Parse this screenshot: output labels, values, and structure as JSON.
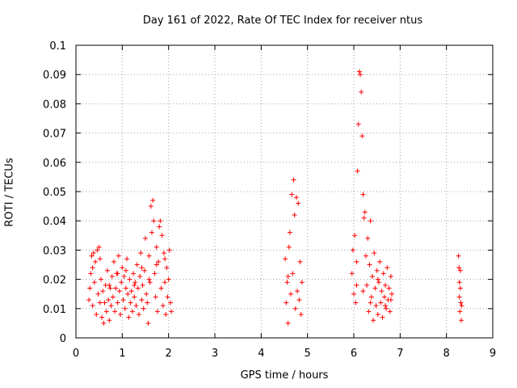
{
  "chart_data": {
    "type": "scatter",
    "title": "Day 161 of 2022, Rate Of TEC Index for receiver ntus",
    "xlabel": "GPS time / hours",
    "ylabel": "ROTI / TECUs",
    "xlim": [
      0,
      9
    ],
    "ylim": [
      0,
      0.1
    ],
    "xticks": [
      "0",
      "1",
      "2",
      "3",
      "4",
      "5",
      "6",
      "7",
      "8",
      "9"
    ],
    "yticks": [
      "0",
      "0.01",
      "0.02",
      "0.03",
      "0.04",
      "0.05",
      "0.06",
      "0.07",
      "0.08",
      "0.09",
      "0.1"
    ],
    "grid": true,
    "marker": "+",
    "color": "#ff0000",
    "series": [
      {
        "points": [
          [
            0.28,
            0.013
          ],
          [
            0.3,
            0.017
          ],
          [
            0.32,
            0.022
          ],
          [
            0.34,
            0.028
          ],
          [
            0.36,
            0.011
          ],
          [
            0.38,
            0.029
          ],
          [
            0.4,
            0.019
          ],
          [
            0.42,
            0.026
          ],
          [
            0.44,
            0.008
          ],
          [
            0.46,
            0.03
          ],
          [
            0.48,
            0.015
          ],
          [
            0.5,
            0.031
          ],
          [
            0.52,
            0.012
          ],
          [
            0.54,
            0.02
          ],
          [
            0.56,
            0.007
          ],
          [
            0.58,
            0.016
          ],
          [
            0.6,
            0.005
          ],
          [
            0.62,
            0.012
          ],
          [
            0.64,
            0.018
          ],
          [
            0.66,
            0.009
          ],
          [
            0.68,
            0.023
          ],
          [
            0.7,
            0.013
          ],
          [
            0.72,
            0.006
          ],
          [
            0.74,
            0.017
          ],
          [
            0.76,
            0.011
          ],
          [
            0.78,
            0.021
          ],
          [
            0.8,
            0.014
          ],
          [
            0.82,
            0.026
          ],
          [
            0.84,
            0.009
          ],
          [
            0.86,
            0.017
          ],
          [
            0.88,
            0.022
          ],
          [
            0.9,
            0.012
          ],
          [
            0.92,
            0.028
          ],
          [
            0.94,
            0.016
          ],
          [
            0.96,
            0.008
          ],
          [
            0.98,
            0.019
          ],
          [
            1.0,
            0.024
          ],
          [
            1.02,
            0.013
          ],
          [
            1.04,
            0.021
          ],
          [
            1.06,
            0.01
          ],
          [
            1.08,
            0.017
          ],
          [
            1.1,
            0.027
          ],
          [
            1.12,
            0.015
          ],
          [
            1.14,
            0.007
          ],
          [
            1.16,
            0.02
          ],
          [
            1.18,
            0.012
          ],
          [
            1.2,
            0.016
          ],
          [
            1.22,
            0.009
          ],
          [
            1.24,
            0.022
          ],
          [
            1.26,
            0.014
          ],
          [
            1.28,
            0.019
          ],
          [
            1.3,
            0.011
          ],
          [
            1.32,
            0.025
          ],
          [
            1.34,
            0.017
          ],
          [
            1.36,
            0.008
          ],
          [
            1.38,
            0.021
          ],
          [
            1.4,
            0.029
          ],
          [
            1.42,
            0.013
          ],
          [
            1.44,
            0.018
          ],
          [
            1.46,
            0.01
          ],
          [
            1.48,
            0.023
          ],
          [
            1.5,
            0.034
          ],
          [
            1.52,
            0.015
          ],
          [
            1.54,
            0.012
          ],
          [
            1.56,
            0.005
          ],
          [
            1.58,
            0.028
          ],
          [
            1.6,
            0.019
          ],
          [
            1.62,
            0.045
          ],
          [
            1.64,
            0.036
          ],
          [
            1.66,
            0.047
          ],
          [
            1.68,
            0.04
          ],
          [
            1.7,
            0.022
          ],
          [
            1.72,
            0.014
          ],
          [
            1.74,
            0.031
          ],
          [
            1.76,
            0.009
          ],
          [
            1.78,
            0.026
          ],
          [
            1.8,
            0.038
          ],
          [
            1.82,
            0.04
          ],
          [
            1.84,
            0.017
          ],
          [
            1.86,
            0.035
          ],
          [
            1.88,
            0.011
          ],
          [
            1.9,
            0.029
          ],
          [
            1.92,
            0.019
          ],
          [
            1.94,
            0.008
          ],
          [
            1.96,
            0.024
          ],
          [
            1.98,
            0.014
          ],
          [
            2.0,
            0.02
          ],
          [
            2.02,
            0.03
          ],
          [
            2.04,
            0.012
          ],
          [
            2.06,
            0.009
          ],
          [
            0.36,
            0.024
          ],
          [
            0.52,
            0.027
          ],
          [
            0.72,
            0.018
          ],
          [
            0.9,
            0.022
          ],
          [
            1.08,
            0.023
          ],
          [
            1.26,
            0.018
          ],
          [
            1.42,
            0.024
          ],
          [
            1.58,
            0.02
          ],
          [
            1.74,
            0.025
          ],
          [
            1.92,
            0.027
          ],
          [
            4.52,
            0.027
          ],
          [
            4.54,
            0.012
          ],
          [
            4.56,
            0.019
          ],
          [
            4.58,
            0.005
          ],
          [
            4.6,
            0.031
          ],
          [
            4.62,
            0.036
          ],
          [
            4.64,
            0.015
          ],
          [
            4.66,
            0.049
          ],
          [
            4.68,
            0.022
          ],
          [
            4.7,
            0.054
          ],
          [
            4.72,
            0.042
          ],
          [
            4.74,
            0.01
          ],
          [
            4.76,
            0.048
          ],
          [
            4.78,
            0.016
          ],
          [
            4.8,
            0.046
          ],
          [
            4.82,
            0.013
          ],
          [
            4.84,
            0.026
          ],
          [
            4.86,
            0.008
          ],
          [
            4.88,
            0.019
          ],
          [
            4.58,
            0.021
          ],
          [
            5.96,
            0.022
          ],
          [
            5.98,
            0.03
          ],
          [
            6.0,
            0.015
          ],
          [
            6.02,
            0.035
          ],
          [
            6.04,
            0.012
          ],
          [
            6.06,
            0.026
          ],
          [
            6.08,
            0.057
          ],
          [
            6.1,
            0.073
          ],
          [
            6.12,
            0.091
          ],
          [
            6.14,
            0.09
          ],
          [
            6.16,
            0.084
          ],
          [
            6.18,
            0.069
          ],
          [
            6.2,
            0.049
          ],
          [
            6.22,
            0.041
          ],
          [
            6.24,
            0.043
          ],
          [
            6.26,
            0.028
          ],
          [
            6.28,
            0.018
          ],
          [
            6.3,
            0.034
          ],
          [
            6.32,
            0.009
          ],
          [
            6.34,
            0.025
          ],
          [
            6.36,
            0.04
          ],
          [
            6.38,
            0.014
          ],
          [
            6.4,
            0.021
          ],
          [
            6.42,
            0.006
          ],
          [
            6.44,
            0.029
          ],
          [
            6.46,
            0.017
          ],
          [
            6.48,
            0.011
          ],
          [
            6.5,
            0.023
          ],
          [
            6.52,
            0.008
          ],
          [
            6.54,
            0.019
          ],
          [
            6.56,
            0.026
          ],
          [
            6.58,
            0.012
          ],
          [
            6.6,
            0.016
          ],
          [
            6.62,
            0.007
          ],
          [
            6.64,
            0.022
          ],
          [
            6.66,
            0.014
          ],
          [
            6.68,
            0.018
          ],
          [
            6.7,
            0.01
          ],
          [
            6.72,
            0.024
          ],
          [
            6.74,
            0.013
          ],
          [
            6.76,
            0.017
          ],
          [
            6.78,
            0.009
          ],
          [
            6.8,
            0.021
          ],
          [
            6.82,
            0.015
          ],
          [
            6.06,
            0.018
          ],
          [
            6.2,
            0.016
          ],
          [
            6.36,
            0.012
          ],
          [
            6.52,
            0.02
          ],
          [
            6.68,
            0.011
          ],
          [
            6.8,
            0.013
          ],
          [
            8.26,
            0.028
          ],
          [
            8.27,
            0.024
          ],
          [
            8.28,
            0.014
          ],
          [
            8.29,
            0.009
          ],
          [
            8.3,
            0.017
          ],
          [
            8.31,
            0.012
          ],
          [
            8.32,
            0.006
          ],
          [
            8.33,
            0.011
          ],
          [
            8.3,
            0.023
          ],
          [
            8.28,
            0.019
          ]
        ]
      }
    ]
  }
}
